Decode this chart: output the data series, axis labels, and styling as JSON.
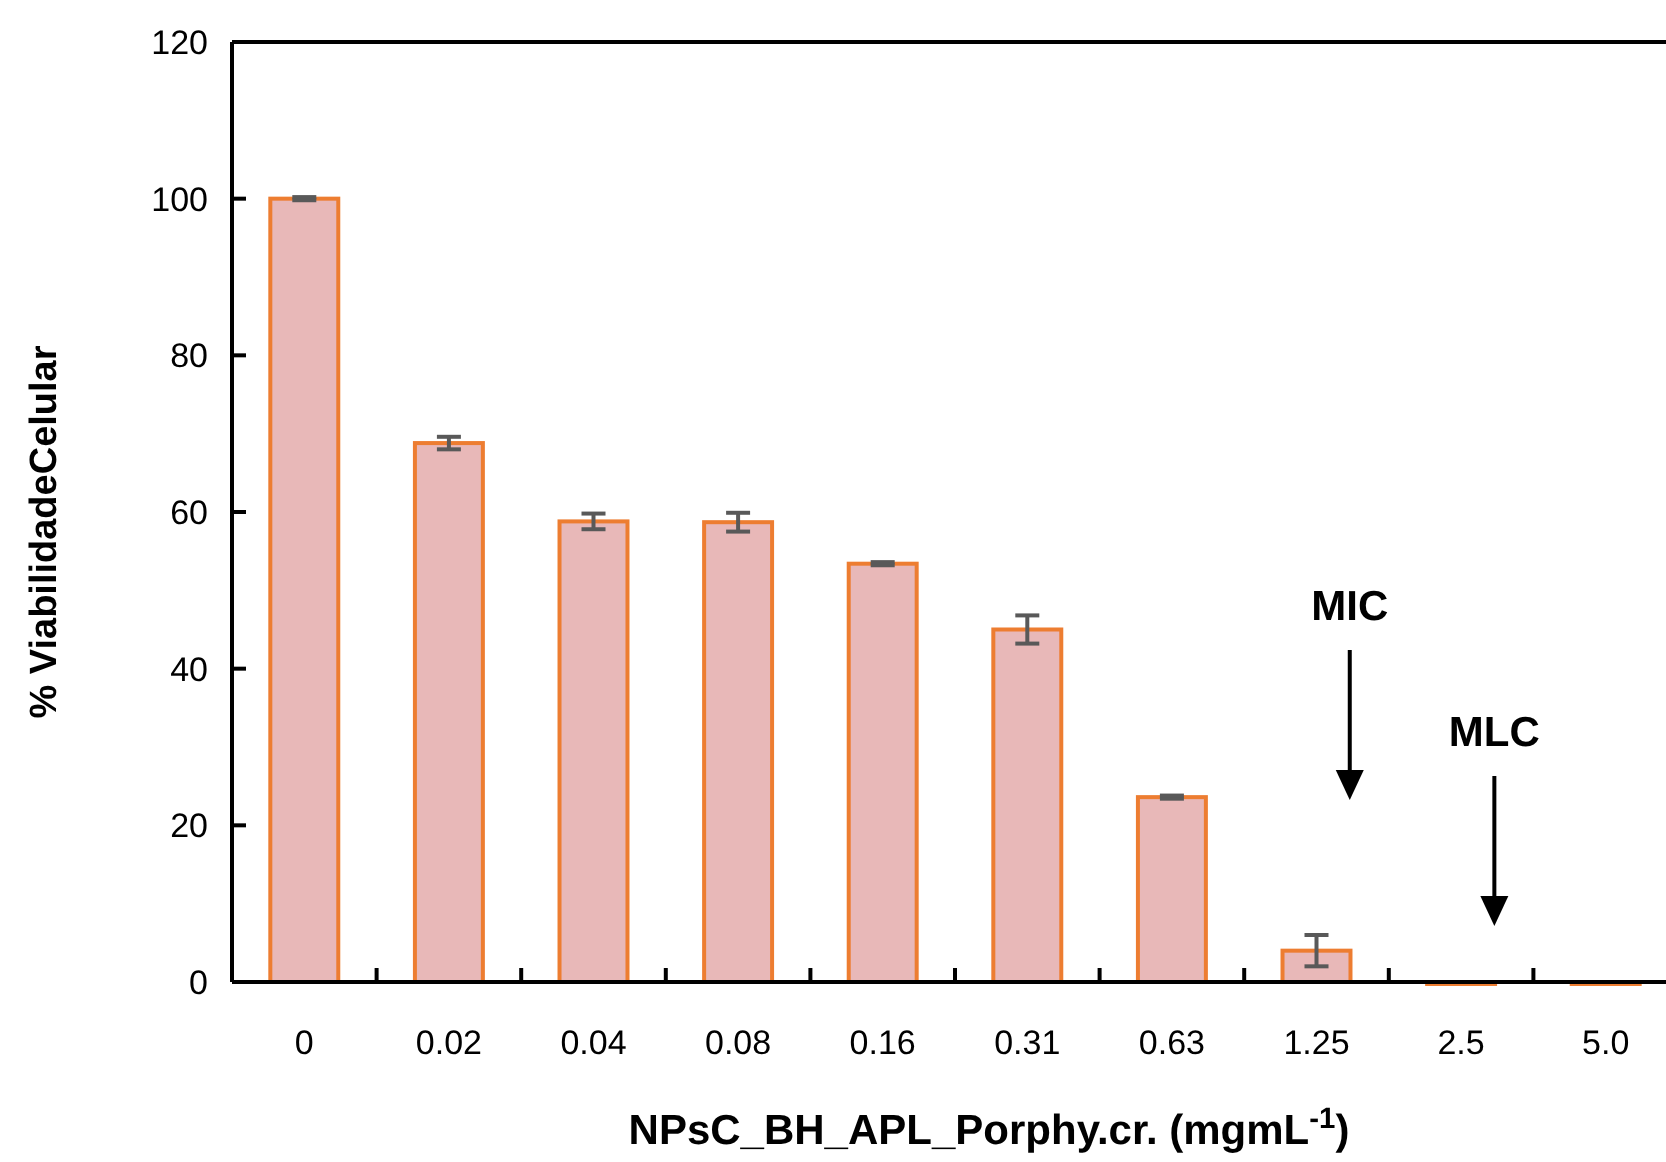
{
  "chart_data": {
    "type": "bar",
    "xlabel": "NPsC_BH_APL_Porphy.cr. (mgmL$^{-1}$)",
    "ylabel": "% ViabilidadeCelular",
    "categories": [
      "0",
      "0.02",
      "0.04",
      "0.08",
      "0.16",
      "0.31",
      "0.63",
      "1.25",
      "2.5",
      "5.0"
    ],
    "values": [
      100,
      68.8,
      58.8,
      58.7,
      53.4,
      45,
      23.6,
      4,
      0,
      0
    ],
    "errors": [
      0.2,
      0.8,
      1,
      1.2,
      0.2,
      1.8,
      0.2,
      2,
      null,
      null
    ],
    "color": "#e8b8b8",
    "ylim": [
      0,
      120
    ],
    "yticks": [
      0,
      20,
      40,
      60,
      80,
      100,
      120
    ],
    "grid": false,
    "annotations": [
      "MIC",
      "MLC"
    ]
  }
}
